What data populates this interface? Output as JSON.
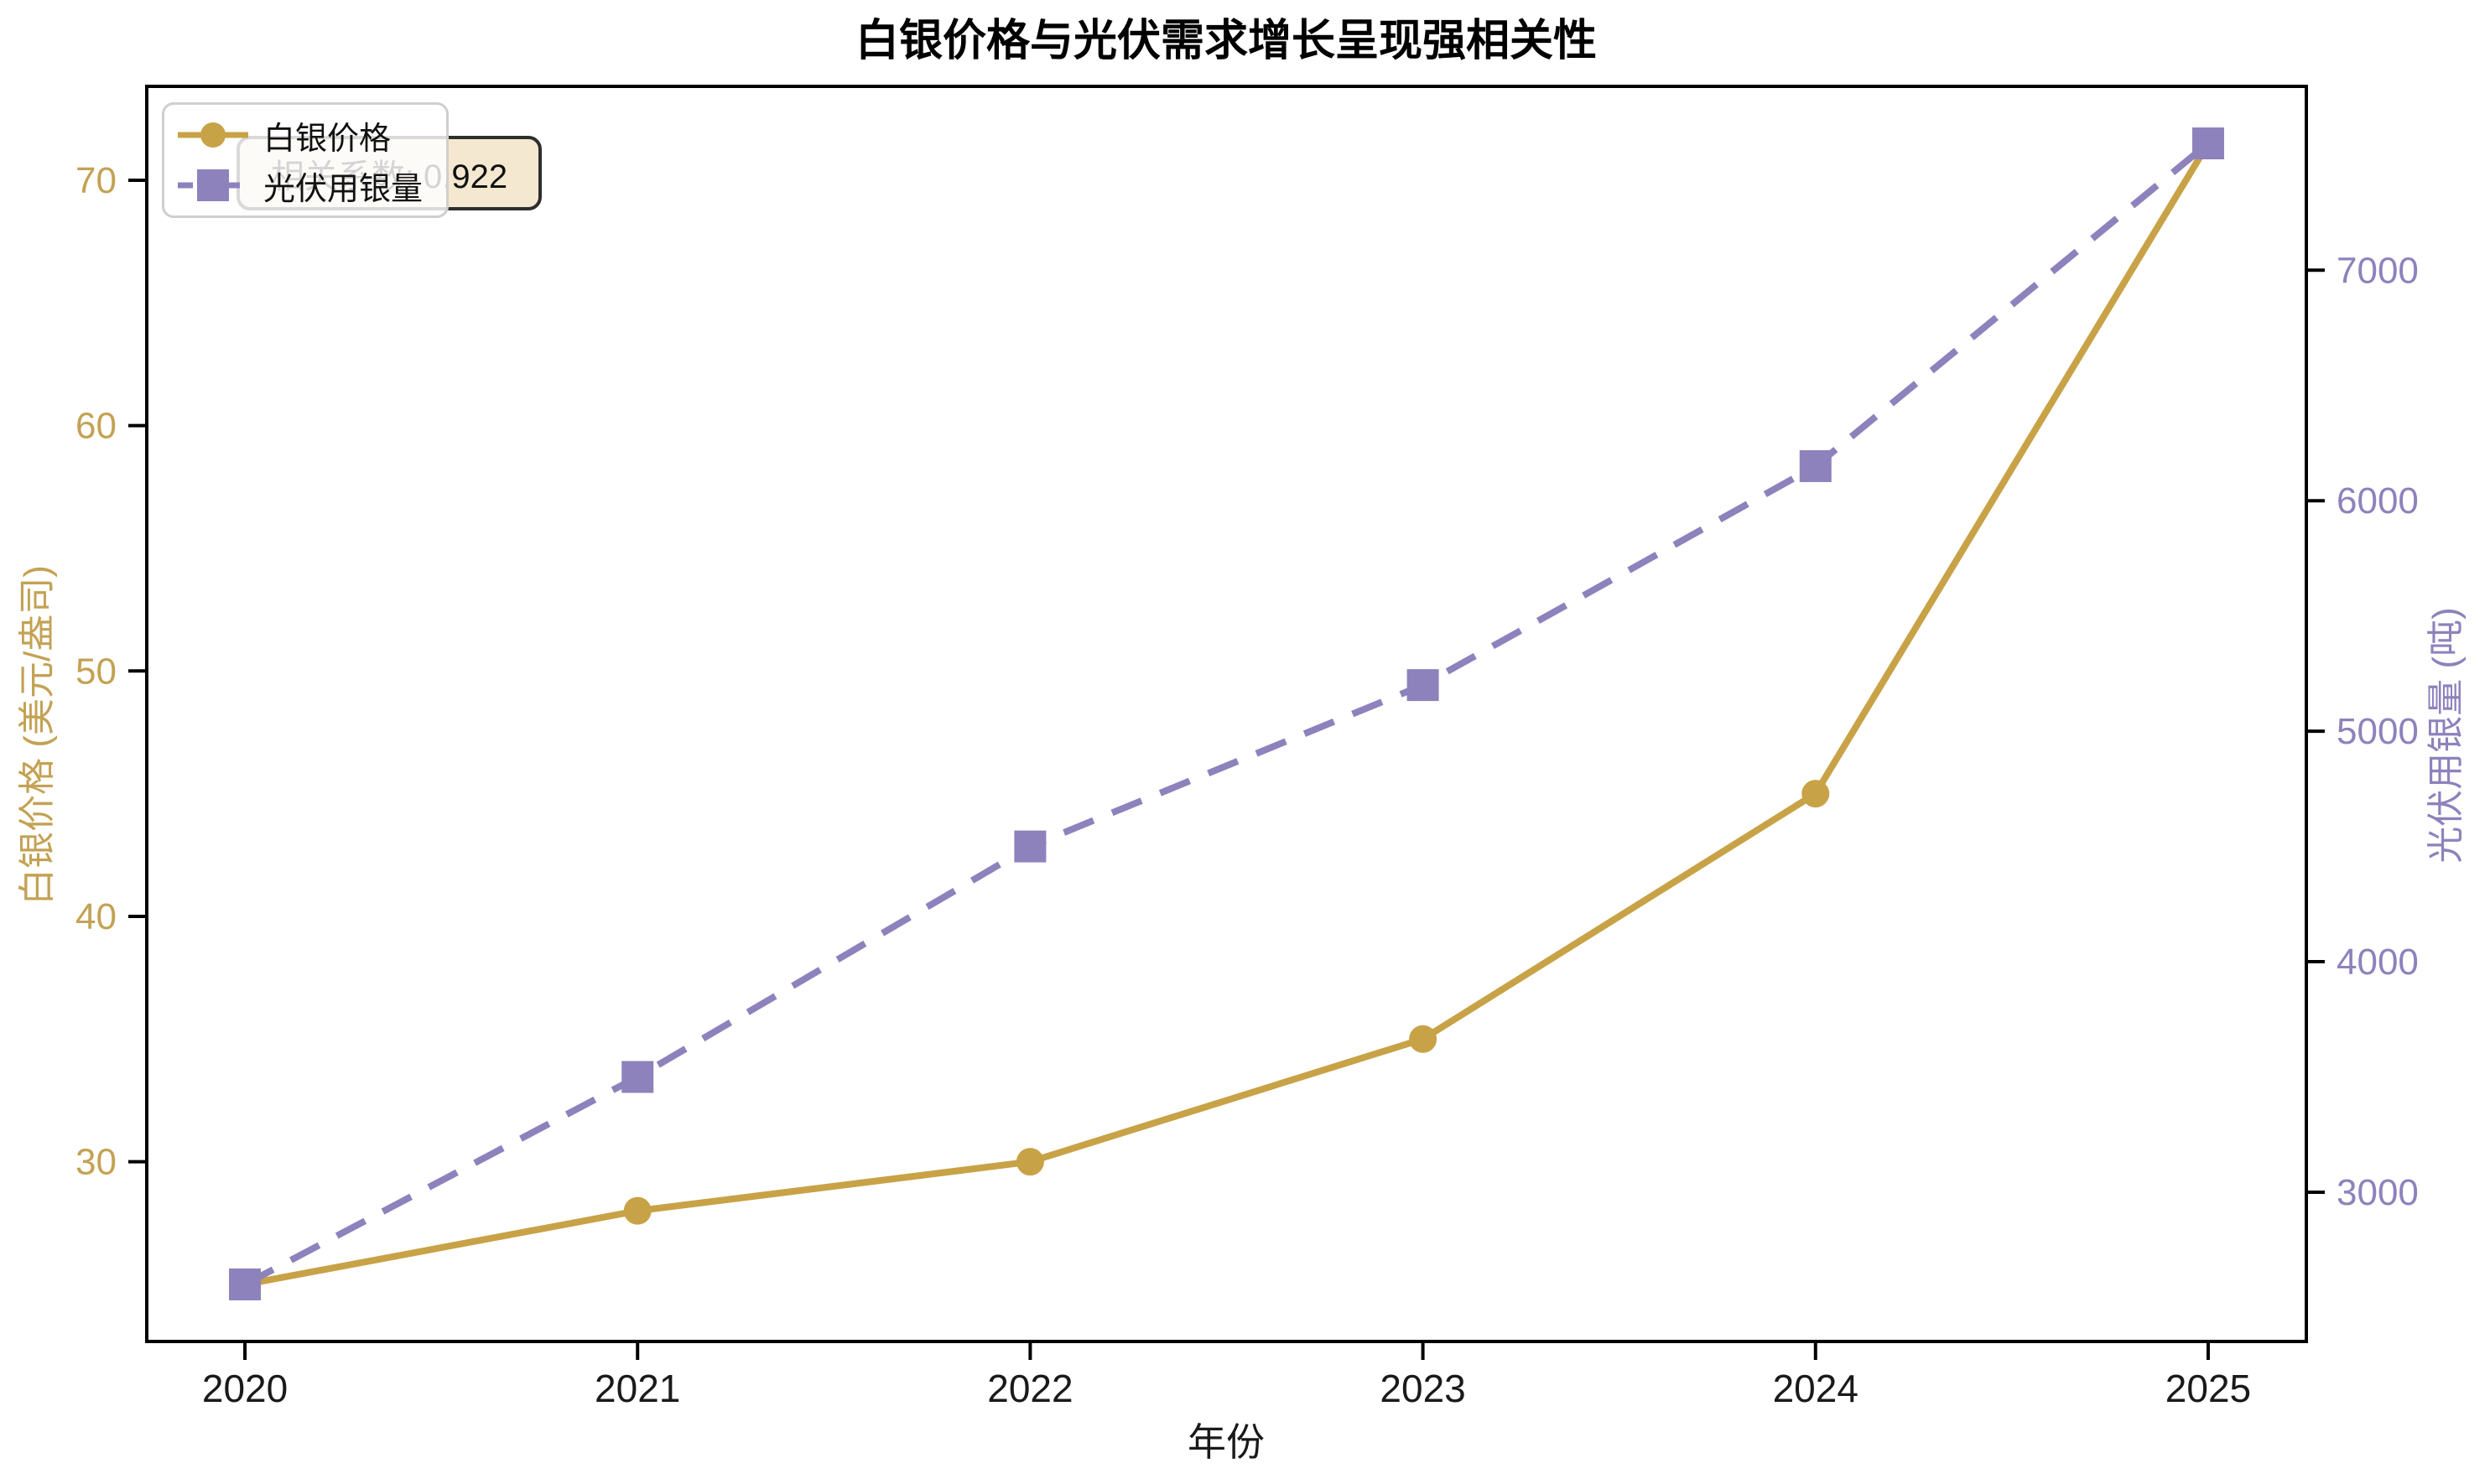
{
  "chart_data": {
    "type": "line",
    "title": "白银价格与光伏需求增长呈现强相关性",
    "xlabel": "年份",
    "x_labels": [
      "2020",
      "2021",
      "2022",
      "2023",
      "2024",
      "2025"
    ],
    "series": [
      {
        "name": "白银价格",
        "axis": "left",
        "values": [
          25,
          28,
          30,
          35,
          45,
          71.5
        ],
        "color": "#C8A246",
        "line_style": "solid",
        "marker": "circle"
      },
      {
        "name": "光伏用银量",
        "axis": "right",
        "values": [
          2600,
          3500,
          4500,
          5200,
          6150,
          7550
        ],
        "color": "#8E82BC",
        "line_style": "dashed",
        "marker": "square"
      }
    ],
    "left_axis": {
      "label": "白银价格 (美元/盎司)",
      "ticks": [
        30,
        40,
        50,
        60,
        70
      ],
      "lim": [
        22.675,
        73.825
      ],
      "color": "#C3A254"
    },
    "right_axis": {
      "label": "光伏用银量 (吨)",
      "ticks": [
        3000,
        4000,
        5000,
        6000,
        7000
      ],
      "lim": [
        2352.5,
        7797.5
      ],
      "color": "#8E82BC"
    },
    "x_lim": [
      -0.25,
      5.25
    ],
    "grid": false,
    "legend_position": "upper left"
  },
  "legend": {
    "items": [
      {
        "label": "白银价格"
      },
      {
        "label": "光伏用银量"
      }
    ]
  },
  "annotation": {
    "text": "相关系数: 0.922"
  }
}
